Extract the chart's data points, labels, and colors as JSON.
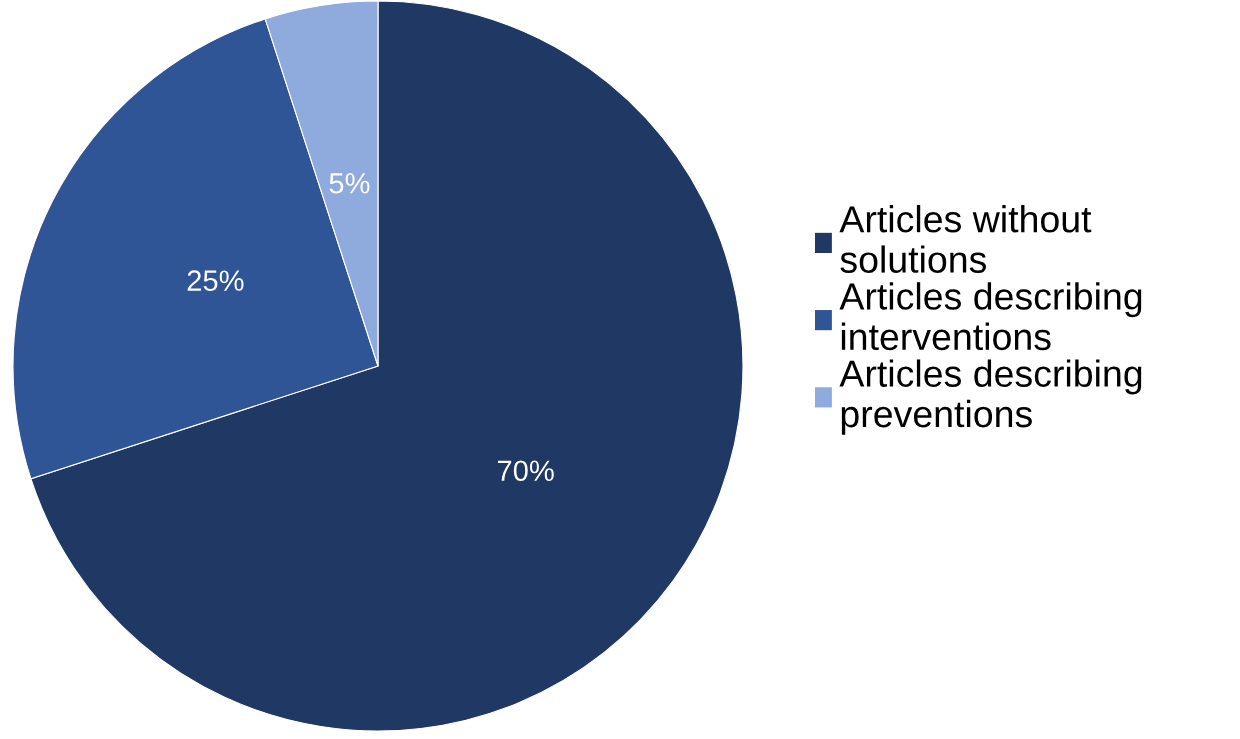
{
  "chart_data": {
    "type": "pie",
    "categories": [
      "Articles without solutions",
      "Articles describing interventions",
      "Articles describing preventions"
    ],
    "values": [
      70,
      25,
      5
    ],
    "colors": [
      "#203864",
      "#2f5597",
      "#8faadc"
    ],
    "value_labels": [
      "70%",
      "25%",
      "5%"
    ],
    "legend": "right"
  }
}
